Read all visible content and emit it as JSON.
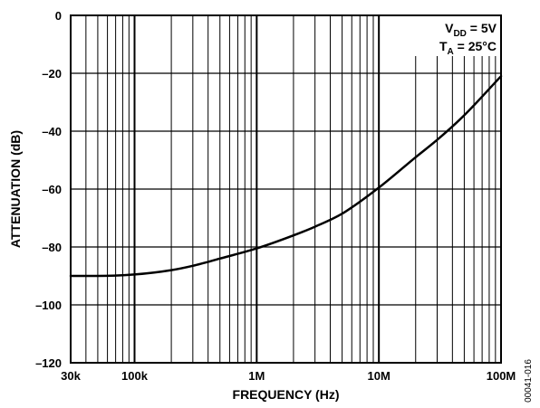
{
  "chart_data": {
    "type": "line",
    "xscale": "log",
    "xlim": [
      30000,
      100000000
    ],
    "ylim": [
      -120,
      0
    ],
    "xlabel": "FREQUENCY (Hz)",
    "ylabel": "ATTENUATION (dB)",
    "grid": true,
    "x_ticks": [
      {
        "value": 30000,
        "label": "30k"
      },
      {
        "value": 100000,
        "label": "100k"
      },
      {
        "value": 1000000,
        "label": "1M"
      },
      {
        "value": 10000000,
        "label": "10M"
      },
      {
        "value": 100000000,
        "label": "100M"
      }
    ],
    "y_ticks": [
      {
        "value": 0,
        "label": "0"
      },
      {
        "value": -20,
        "label": "–20"
      },
      {
        "value": -40,
        "label": "–40"
      },
      {
        "value": -60,
        "label": "–60"
      },
      {
        "value": -80,
        "label": "–80"
      },
      {
        "value": -100,
        "label": "–100"
      },
      {
        "value": -120,
        "label": "–120"
      }
    ],
    "legend": {
      "placement": "top-right",
      "lines": [
        {
          "main": "V",
          "sub": "DD",
          "rest": " = 5V"
        },
        {
          "main": "T",
          "sub": "A",
          "rest": " = 25°C"
        }
      ]
    },
    "series": [
      {
        "x": [
          30000,
          50000,
          100000,
          200000,
          300000,
          500000,
          1000000,
          2000000,
          3000000,
          5000000,
          10000000,
          20000000,
          30000000,
          50000000,
          100000000
        ],
        "y": [
          -90,
          -90,
          -89.5,
          -88,
          -86.5,
          -84,
          -80.5,
          -76,
          -73,
          -68.5,
          -59.5,
          -49,
          -43,
          -34.5,
          -21
        ]
      }
    ],
    "figure_id": "00041-016"
  }
}
